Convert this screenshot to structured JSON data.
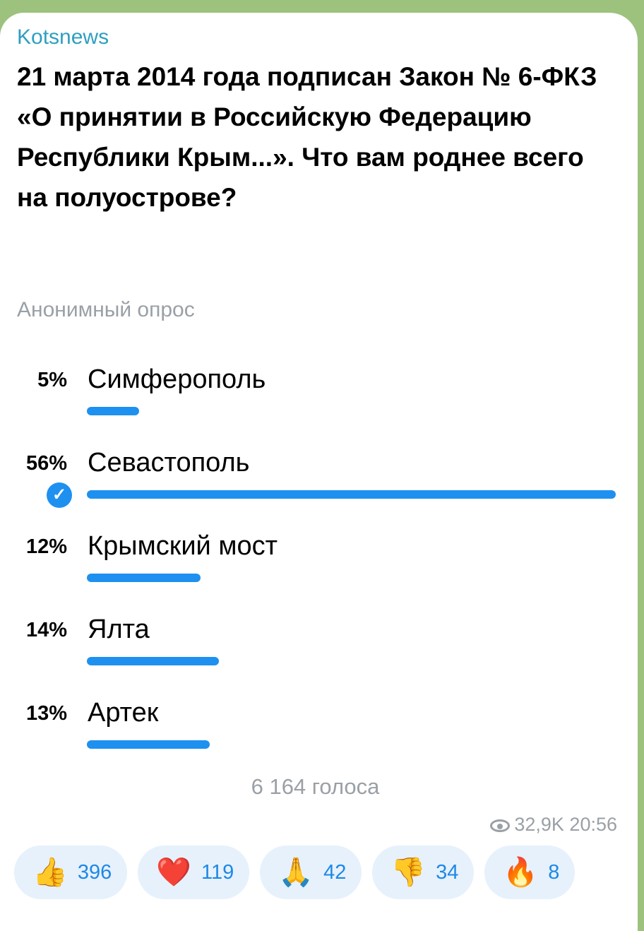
{
  "message": {
    "author": "Kotsnews",
    "question": "21 марта 2014 года подписан Закон № 6-ФКЗ «О принятии в Российскую Федерацию Республики Крым...». Что вам роднее всего на полуострове?",
    "poll_type": "Анонимный опрос",
    "options": [
      {
        "percent_label": "5%",
        "label": "Симферополь",
        "percent": 5,
        "chosen": false
      },
      {
        "percent_label": "56%",
        "label": "Севастополь",
        "percent": 56,
        "chosen": true
      },
      {
        "percent_label": "12%",
        "label": "Крымский мост",
        "percent": 12,
        "chosen": false
      },
      {
        "percent_label": "14%",
        "label": "Ялта",
        "percent": 14,
        "chosen": false
      },
      {
        "percent_label": "13%",
        "label": "Артек",
        "percent": 13,
        "chosen": false
      }
    ],
    "votes": "6 164 голоса",
    "views": "32,9K",
    "time": "20:56",
    "reactions": [
      {
        "emoji": "👍",
        "icon": "thumbs-up",
        "count": "396"
      },
      {
        "emoji": "❤️",
        "icon": "heart",
        "count": "119"
      },
      {
        "emoji": "🙏",
        "icon": "praying-hands",
        "count": "42"
      },
      {
        "emoji": "👎",
        "icon": "thumbs-down",
        "count": "34"
      },
      {
        "emoji": "🔥",
        "icon": "fire",
        "count": "8"
      }
    ],
    "accent_color": "#1e90f0",
    "author_color": "#2f9fbf"
  }
}
